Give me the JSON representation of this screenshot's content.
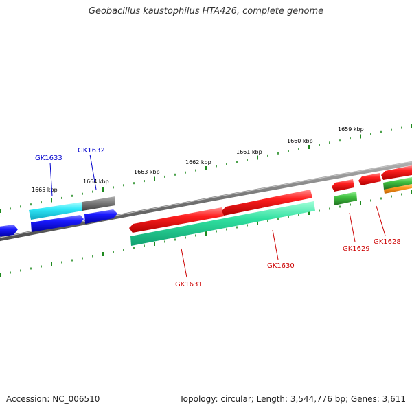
{
  "title": "Geobacillus kaustophilus HTA426, complete genome",
  "footer": {
    "accession": "Accession: NC_006510",
    "summary": "Topology: circular; Length: 3,544,776 bp; Genes: 3,611"
  },
  "scale_labels": [
    "1659 kbp",
    "1660 kbp",
    "1661 kbp",
    "1662 kbp",
    "1663 kbp",
    "1664 kbp",
    "1665 kbp"
  ],
  "colors": {
    "backbone": "#707070",
    "ticks": "#1f8a1f",
    "red": "#ee1111",
    "blue": "#1111ee",
    "cyan": "#22ddee",
    "gray": "#707070",
    "teal": "#22dd99",
    "green": "#33bb33",
    "orange": "#ff9911",
    "label_red": "#cc0000",
    "label_blue": "#0000cc"
  },
  "gene_labels": [
    {
      "name": "GK1633",
      "color": "label_blue"
    },
    {
      "name": "GK1632",
      "color": "label_blue"
    },
    {
      "name": "GK1631",
      "color": "label_red"
    },
    {
      "name": "GK1630",
      "color": "label_red"
    },
    {
      "name": "GK1629",
      "color": "label_red"
    },
    {
      "name": "GK1628",
      "color": "label_red"
    }
  ]
}
